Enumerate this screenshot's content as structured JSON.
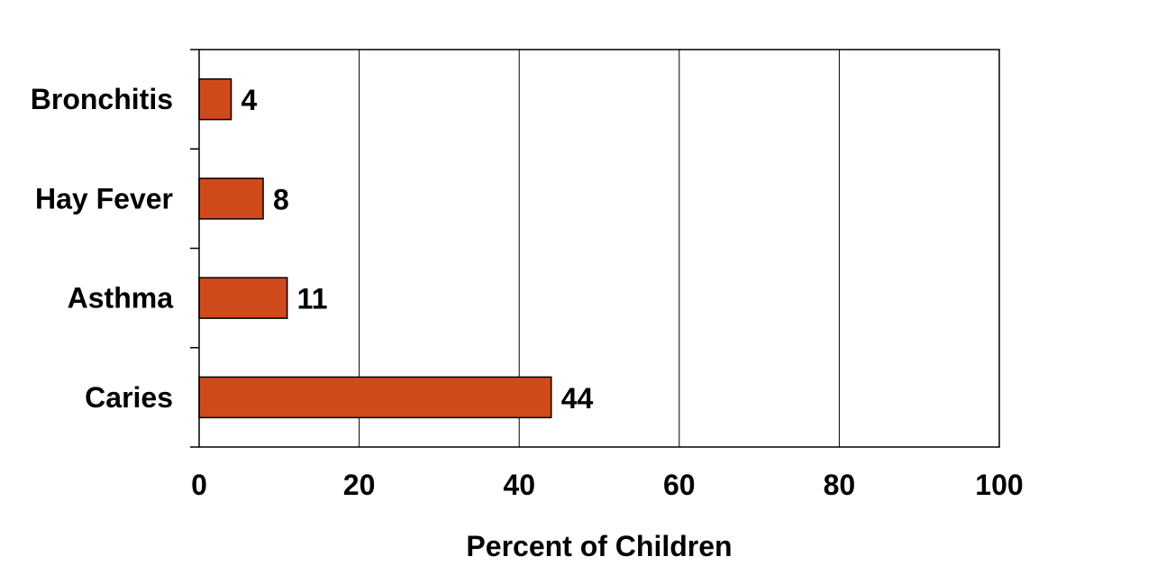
{
  "chart_data": {
    "type": "bar",
    "orientation": "horizontal",
    "categories": [
      "Bronchitis",
      "Hay Fever",
      "Asthma",
      "Caries"
    ],
    "values": [
      4,
      8,
      11,
      44
    ],
    "value_labels": [
      "4",
      "8",
      "11",
      "44"
    ],
    "title": "",
    "xlabel": "Percent of Children",
    "ylabel": "",
    "xlim": [
      0,
      100
    ],
    "xticks": [
      "0",
      "20",
      "40",
      "60",
      "80",
      "100"
    ],
    "grid": "vertical",
    "legend": "none",
    "bar_color": "#d04a1b",
    "bar_edge_color": "#000000"
  }
}
